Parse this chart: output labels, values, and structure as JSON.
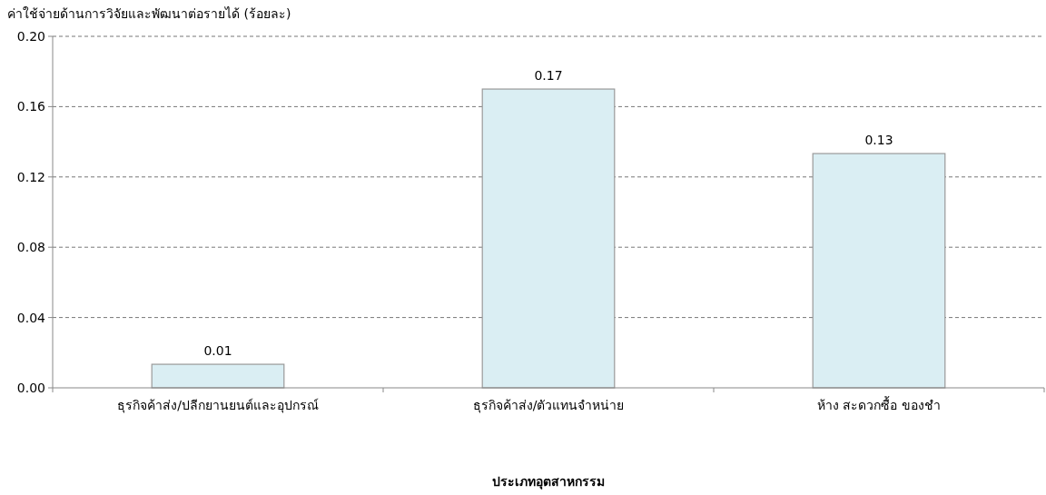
{
  "chart_data": {
    "type": "bar",
    "ylabel": "ค่าใช้จ่ายด้านการวิจัยและพัฒนาต่อรายได้ (ร้อยละ)",
    "xlabel": "ประเภทอุตสาหกรรม",
    "categories": [
      "ธุรกิจค้าส่ง/ปลีกยานยนต์และอุปกรณ์",
      "ธุรกิจค้าส่ง/ตัวแทนจำหน่าย",
      "ห้าง สะดวกซื้อ ของชำ"
    ],
    "values": [
      0.0134,
      0.17,
      0.1333
    ],
    "value_labels": [
      "0.01",
      "0.17",
      "0.13"
    ],
    "color": "#daeef3",
    "ylim": [
      0,
      0.2
    ],
    "yticks": [
      {
        "value": 0,
        "label": "0.00"
      },
      {
        "value": 0.04,
        "label": "0.04"
      },
      {
        "value": 0.08,
        "label": "0.08"
      },
      {
        "value": 0.12,
        "label": "0.12"
      },
      {
        "value": 0.16,
        "label": "0.16"
      },
      {
        "value": 0.2,
        "label": "0.20"
      }
    ],
    "grid": "y"
  }
}
